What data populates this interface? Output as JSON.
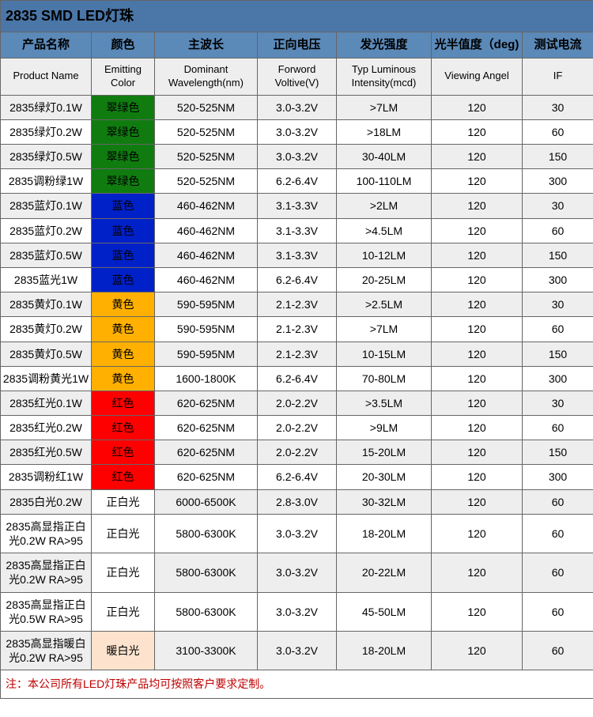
{
  "title": "2835 SMD LED灯珠",
  "headers_cn": [
    "产品名称",
    "颜色",
    "主波长",
    "正向电压",
    "发光强度",
    "光半值度（deg)",
    "测试电流"
  ],
  "headers_en": [
    "Product Name",
    "Emitting Color",
    "Dominant Wavelength(nm)",
    "Forword Voltive(V)",
    "Typ Luminous Intensity(mcd)",
    "Viewing Angel",
    "IF"
  ],
  "colors": {
    "green": {
      "bg": "#107c10",
      "fg": "#000000"
    },
    "blue": {
      "bg": "#0020c8",
      "fg": "#000000"
    },
    "yellow": {
      "bg": "#ffb000",
      "fg": "#000000"
    },
    "red": {
      "bg": "#ff0000",
      "fg": "#000000"
    },
    "white": {
      "bg": "#ffffff",
      "fg": "#000000"
    },
    "warmwhite": {
      "bg": "#fde3ce",
      "fg": "#000000"
    }
  },
  "rows": [
    {
      "name": "2835绿灯0.1W",
      "color_label": "翠绿色",
      "color_key": "green",
      "wl": "520-525NM",
      "vf": "3.0-3.2V",
      "lm": ">7LM",
      "deg": "120",
      "if": "30"
    },
    {
      "name": "2835绿灯0.2W",
      "color_label": "翠绿色",
      "color_key": "green",
      "wl": "520-525NM",
      "vf": "3.0-3.2V",
      "lm": ">18LM",
      "deg": "120",
      "if": "60"
    },
    {
      "name": "2835绿灯0.5W",
      "color_label": "翠绿色",
      "color_key": "green",
      "wl": "520-525NM",
      "vf": "3.0-3.2V",
      "lm": "30-40LM",
      "deg": "120",
      "if": "150"
    },
    {
      "name": "2835调粉绿1W",
      "color_label": "翠绿色",
      "color_key": "green",
      "wl": "520-525NM",
      "vf": "6.2-6.4V",
      "lm": "100-110LM",
      "deg": "120",
      "if": "300"
    },
    {
      "name": "2835蓝灯0.1W",
      "color_label": "蓝色",
      "color_key": "blue",
      "wl": "460-462NM",
      "vf": "3.1-3.3V",
      "lm": ">2LM",
      "deg": "120",
      "if": "30"
    },
    {
      "name": "2835蓝灯0.2W",
      "color_label": "蓝色",
      "color_key": "blue",
      "wl": "460-462NM",
      "vf": "3.1-3.3V",
      "lm": ">4.5LM",
      "deg": "120",
      "if": "60"
    },
    {
      "name": "2835蓝灯0.5W",
      "color_label": "蓝色",
      "color_key": "blue",
      "wl": "460-462NM",
      "vf": "3.1-3.3V",
      "lm": "10-12LM",
      "deg": "120",
      "if": "150"
    },
    {
      "name": "2835蓝光1W",
      "color_label": "蓝色",
      "color_key": "blue",
      "wl": "460-462NM",
      "vf": "6.2-6.4V",
      "lm": "20-25LM",
      "deg": "120",
      "if": "300"
    },
    {
      "name": "2835黄灯0.1W",
      "color_label": "黄色",
      "color_key": "yellow",
      "wl": "590-595NM",
      "vf": "2.1-2.3V",
      "lm": ">2.5LM",
      "deg": "120",
      "if": "30"
    },
    {
      "name": "2835黄灯0.2W",
      "color_label": "黄色",
      "color_key": "yellow",
      "wl": "590-595NM",
      "vf": "2.1-2.3V",
      "lm": ">7LM",
      "deg": "120",
      "if": "60"
    },
    {
      "name": "2835黄灯0.5W",
      "color_label": "黄色",
      "color_key": "yellow",
      "wl": "590-595NM",
      "vf": "2.1-2.3V",
      "lm": "10-15LM",
      "deg": "120",
      "if": "150"
    },
    {
      "name": "2835调粉黄光1W",
      "color_label": "黄色",
      "color_key": "yellow",
      "wl": "1600-1800K",
      "vf": "6.2-6.4V",
      "lm": "70-80LM",
      "deg": "120",
      "if": "300"
    },
    {
      "name": "2835红光0.1W",
      "color_label": "红色",
      "color_key": "red",
      "wl": "620-625NM",
      "vf": "2.0-2.2V",
      "lm": ">3.5LM",
      "deg": "120",
      "if": "30"
    },
    {
      "name": "2835红光0.2W",
      "color_label": "红色",
      "color_key": "red",
      "wl": "620-625NM",
      "vf": "2.0-2.2V",
      "lm": ">9LM",
      "deg": "120",
      "if": "60"
    },
    {
      "name": "2835红光0.5W",
      "color_label": "红色",
      "color_key": "red",
      "wl": "620-625NM",
      "vf": "2.0-2.2V",
      "lm": "15-20LM",
      "deg": "120",
      "if": "150"
    },
    {
      "name": "2835调粉红1W",
      "color_label": "红色",
      "color_key": "red",
      "wl": "620-625NM",
      "vf": "6.2-6.4V",
      "lm": "20-30LM",
      "deg": "120",
      "if": "300"
    },
    {
      "name": "2835白光0.2W",
      "color_label": "正白光",
      "color_key": "white",
      "wl": "6000-6500K",
      "vf": "2.8-3.0V",
      "lm": "30-32LM",
      "deg": "120",
      "if": "60"
    },
    {
      "name": "2835高显指正白光0.2W RA>95",
      "color_label": "正白光",
      "color_key": "white",
      "wl": "5800-6300K",
      "vf": "3.0-3.2V",
      "lm": "18-20LM",
      "deg": "120",
      "if": "60"
    },
    {
      "name": "2835高显指正白光0.2W RA>95",
      "color_label": "正白光",
      "color_key": "white",
      "wl": "5800-6300K",
      "vf": "3.0-3.2V",
      "lm": "20-22LM",
      "deg": "120",
      "if": "60"
    },
    {
      "name": "2835高显指正白光0.5W RA>95",
      "color_label": "正白光",
      "color_key": "white",
      "wl": "5800-6300K",
      "vf": "3.0-3.2V",
      "lm": "45-50LM",
      "deg": "120",
      "if": "60"
    },
    {
      "name": "2835高显指暖白光0.2W RA>95",
      "color_label": "暖白光",
      "color_key": "warmwhite",
      "wl": "3100-3300K",
      "vf": "3.0-3.2V",
      "lm": "18-20LM",
      "deg": "120",
      "if": "60"
    }
  ],
  "footer_note": "注：本公司所有LED灯珠产品均可按照客户要求定制。"
}
